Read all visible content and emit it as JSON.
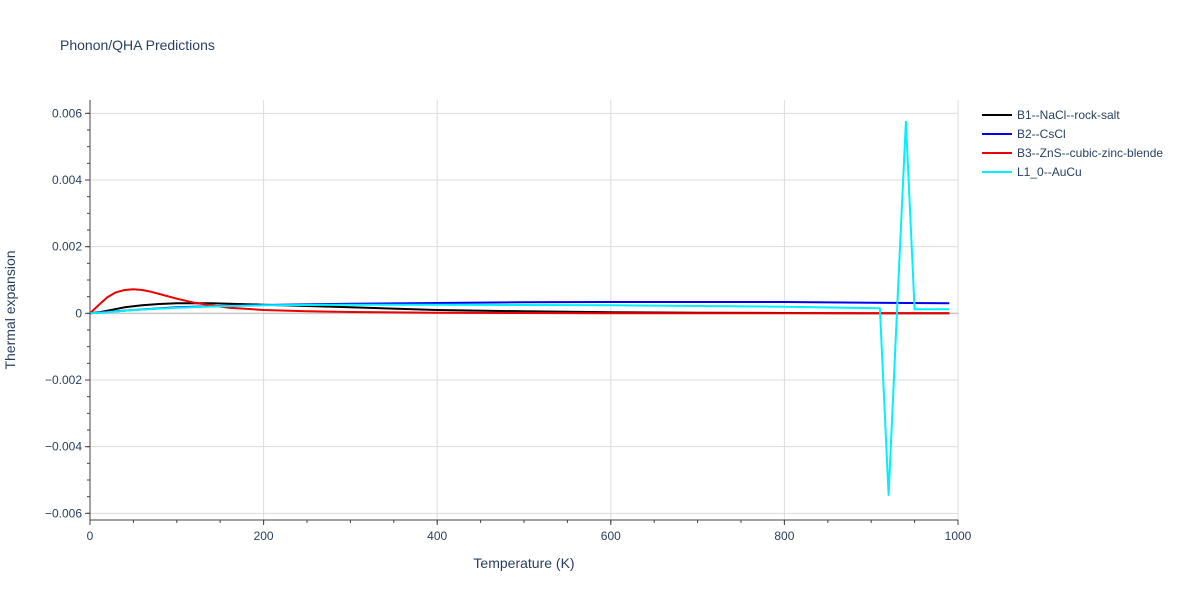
{
  "chart_data": {
    "type": "line",
    "title": "Phonon/QHA Predictions",
    "xlabel": "Temperature (K)",
    "ylabel": "Thermal expansion",
    "xlim": [
      0,
      1000
    ],
    "ylim": [
      -0.0062,
      0.0064
    ],
    "xticks": [
      0,
      200,
      400,
      600,
      800,
      1000
    ],
    "xtick_labels": [
      "0",
      "200",
      "400",
      "600",
      "800",
      "1000"
    ],
    "yticks": [
      -0.006,
      -0.004,
      -0.002,
      0,
      0.002,
      0.004,
      0.006
    ],
    "ytick_labels": [
      "−0.006",
      "−0.004",
      "−0.002",
      "0",
      "0.002",
      "0.004",
      "0.006"
    ],
    "grid": true,
    "legend_position": "top-right",
    "series": [
      {
        "name": "B1--NaCl--rock-salt",
        "color": "#000000",
        "x": [
          0,
          10,
          20,
          30,
          40,
          50,
          60,
          80,
          100,
          120,
          140,
          160,
          200,
          250,
          300,
          400,
          500,
          600,
          700,
          800,
          900,
          990
        ],
        "y": [
          0,
          3e-05,
          8e-05,
          0.00013,
          0.00018,
          0.00021,
          0.00024,
          0.00028,
          0.0003,
          0.0003,
          0.0003,
          0.00029,
          0.00026,
          0.00022,
          0.00018,
          0.0001,
          6e-05,
          3e-05,
          2e-05,
          1e-05,
          5e-06,
          3e-06
        ]
      },
      {
        "name": "B2--CsCl",
        "color": "#0000ee",
        "x": [
          0,
          20,
          50,
          100,
          150,
          200,
          300,
          400,
          500,
          600,
          700,
          800,
          900,
          990
        ],
        "y": [
          0,
          4e-05,
          0.0001,
          0.00018,
          0.00022,
          0.00025,
          0.00029,
          0.00031,
          0.00033,
          0.00034,
          0.00034,
          0.00034,
          0.00032,
          0.0003
        ]
      },
      {
        "name": "B3--ZnS--cubic-zinc-blende",
        "color": "#ee0000",
        "x": [
          0,
          10,
          20,
          30,
          40,
          50,
          60,
          70,
          80,
          100,
          120,
          140,
          160,
          200,
          250,
          300,
          400,
          500,
          600,
          800,
          990
        ],
        "y": [
          0,
          0.00025,
          0.00048,
          0.00063,
          0.0007,
          0.00072,
          0.0007,
          0.00065,
          0.00058,
          0.00044,
          0.00032,
          0.00024,
          0.00017,
          0.0001,
          6e-05,
          4e-05,
          2e-05,
          1e-05,
          5e-06,
          2e-06,
          1e-06
        ]
      },
      {
        "name": "L1_0--AuCu",
        "color": "#00f0ff",
        "x": [
          0,
          20,
          50,
          100,
          150,
          200,
          300,
          400,
          500,
          600,
          700,
          800,
          910,
          920,
          930,
          940,
          950,
          990
        ],
        "y": [
          0,
          3e-05,
          0.0001,
          0.00017,
          0.00021,
          0.00024,
          0.00026,
          0.00026,
          0.00025,
          0.00024,
          0.00022,
          0.0002,
          0.00015,
          -0.00545,
          0.0002,
          0.00575,
          0.00012,
          0.00012
        ]
      }
    ]
  }
}
